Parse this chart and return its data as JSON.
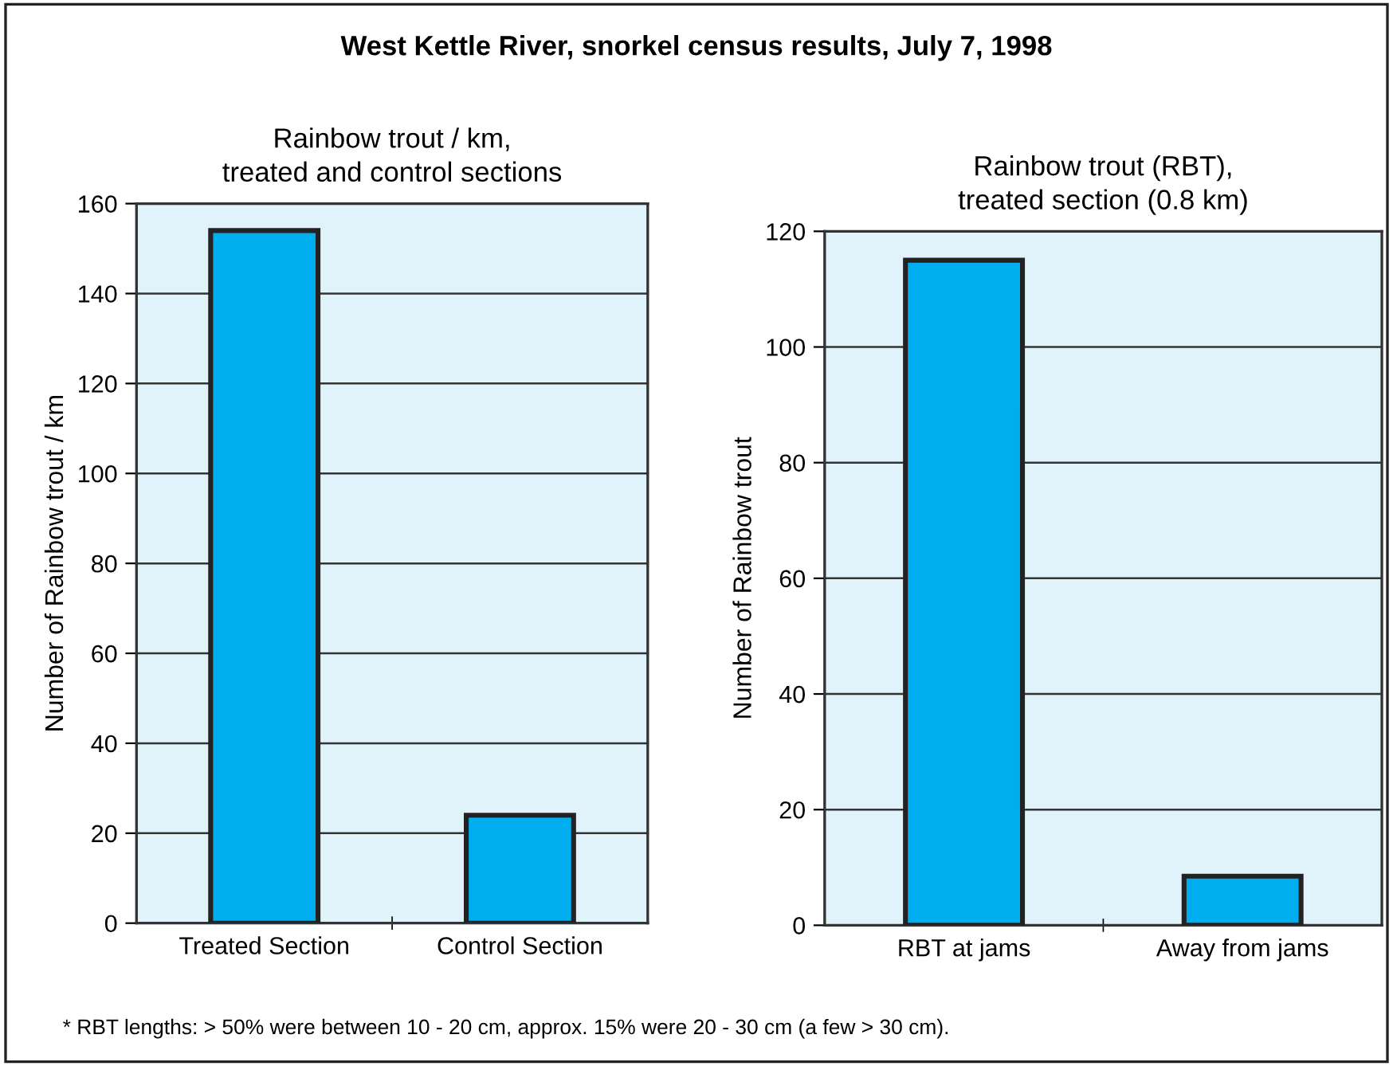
{
  "chart_data": [
    {
      "type": "bar",
      "title": "Rainbow trout / km,\ntreated and control sections",
      "ylabel": "Number of Rainbow trout / km",
      "categories": [
        "Treated Section",
        "Control Section"
      ],
      "values": [
        154,
        24
      ],
      "color": "#00aeef",
      "ylim": [
        0,
        160
      ],
      "yticks": [
        0,
        20,
        40,
        60,
        80,
        100,
        120,
        140,
        160
      ],
      "grid": "y",
      "annotations": [
        "West Kettle River, snorkel census results, July 7, 1998"
      ]
    },
    {
      "type": "bar",
      "title": "Rainbow trout (RBT),\ntreated section (0.8 km)",
      "ylabel": "Number of Rainbow trout",
      "categories": [
        "RBT at jams",
        "Away from jams"
      ],
      "values": [
        115,
        8.5
      ],
      "color": "#00aeef",
      "ylim": [
        0,
        120
      ],
      "yticks": [
        0,
        20,
        40,
        60,
        80,
        100,
        120
      ],
      "grid": "y",
      "annotations": [
        "* RBT lengths: > 50% were between 10 - 20 cm, approx. 15% were 20 - 30 cm (a few > 30 cm)."
      ]
    }
  ]
}
